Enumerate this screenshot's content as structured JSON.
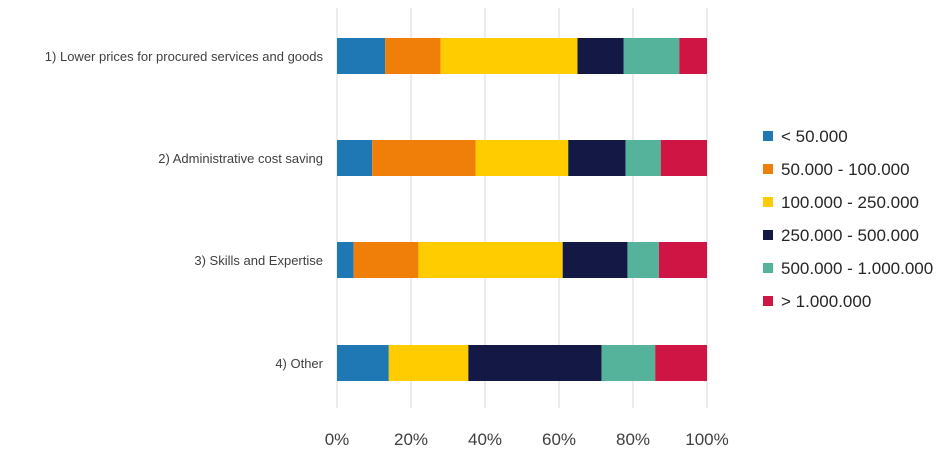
{
  "chart_data": {
    "type": "bar",
    "orientation": "horizontal",
    "stacked": "percent",
    "categories": [
      "1) Lower prices for procured services and goods",
      "2) Administrative cost saving",
      "3) Skills and Expertise",
      "4) Other"
    ],
    "series": [
      {
        "name": "< 50.000",
        "color": "#1f77b4",
        "values": [
          13,
          9.5,
          4.5,
          14
        ]
      },
      {
        "name": "50.000 - 100.000",
        "color": "#f07f09",
        "values": [
          15,
          28,
          17.5,
          0
        ]
      },
      {
        "name": "100.000 - 250.000",
        "color": "#ffcc00",
        "values": [
          37,
          25,
          39,
          21.5
        ]
      },
      {
        "name": "250.000 - 500.000",
        "color": "#131944",
        "values": [
          12.5,
          15.5,
          17.5,
          36
        ]
      },
      {
        "name": "500.000 - 1.000.000",
        "color": "#55b39b",
        "values": [
          15,
          9.5,
          8.5,
          14.5
        ]
      },
      {
        "name": "> 1.000.000",
        "color": "#cf1543",
        "values": [
          7.5,
          12.5,
          13,
          14
        ]
      }
    ],
    "xticks": [
      "0%",
      "20%",
      "40%",
      "60%",
      "80%",
      "100%"
    ],
    "xlim": [
      0,
      100
    ],
    "grid": true,
    "legend_position": "right",
    "title": "",
    "xlabel": "",
    "ylabel": ""
  }
}
